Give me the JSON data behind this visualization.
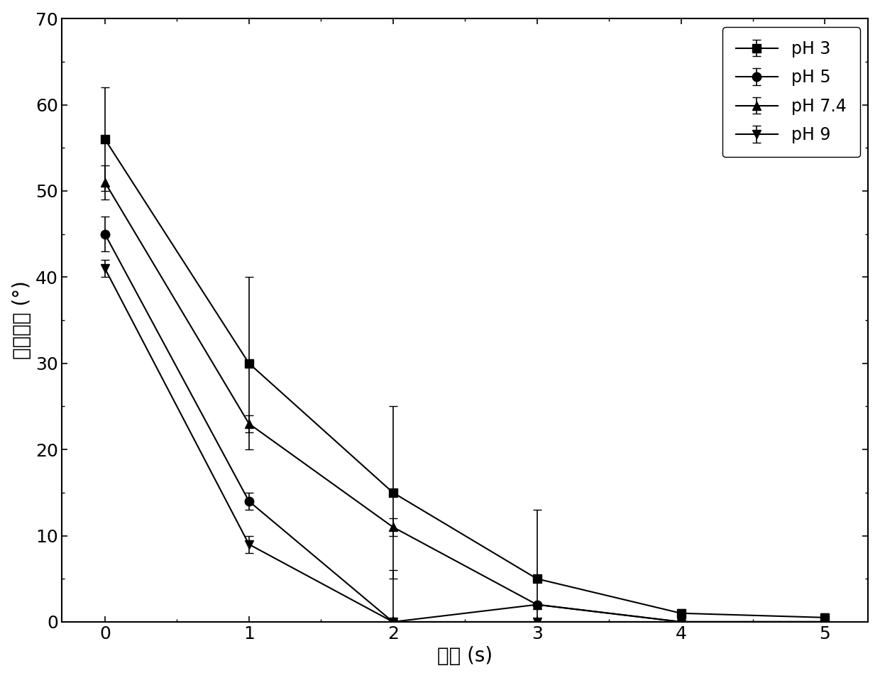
{
  "x": [
    0,
    1,
    2,
    3,
    4,
    5
  ],
  "series": [
    {
      "label": "pH 3",
      "y": [
        56,
        30,
        15,
        5,
        1,
        0.5
      ],
      "yerr": [
        6,
        10,
        10,
        8,
        0.5,
        0.5
      ],
      "marker": "s",
      "color": "#000000"
    },
    {
      "label": "pH 5",
      "y": [
        45,
        14,
        0,
        2,
        0,
        0
      ],
      "yerr": [
        2,
        1,
        6,
        0,
        0,
        0
      ],
      "marker": "o",
      "color": "#000000"
    },
    {
      "label": "pH 7.4",
      "y": [
        51,
        23,
        11,
        2,
        0,
        0
      ],
      "yerr": [
        2,
        1,
        1,
        0,
        0,
        0
      ],
      "marker": "^",
      "color": "#000000"
    },
    {
      "label": "pH 9",
      "y": [
        41,
        9,
        0,
        0,
        0,
        0
      ],
      "yerr": [
        1,
        1,
        0,
        0,
        0,
        0
      ],
      "marker": "v",
      "color": "#000000"
    }
  ],
  "xlabel": "时间 (s)",
  "ylabel": "水接触角 (°)",
  "xlim": [
    -0.3,
    5.3
  ],
  "ylim": [
    0,
    70
  ],
  "xticks": [
    0,
    1,
    2,
    3,
    4,
    5
  ],
  "yticks": [
    0,
    10,
    20,
    30,
    40,
    50,
    60,
    70
  ],
  "legend_loc": "upper right",
  "linewidth": 1.5,
  "markersize": 9,
  "capsize": 4,
  "elinewidth": 1.2,
  "xlabel_fontsize": 20,
  "ylabel_fontsize": 20,
  "tick_fontsize": 18,
  "legend_fontsize": 17,
  "background_color": "#ffffff"
}
